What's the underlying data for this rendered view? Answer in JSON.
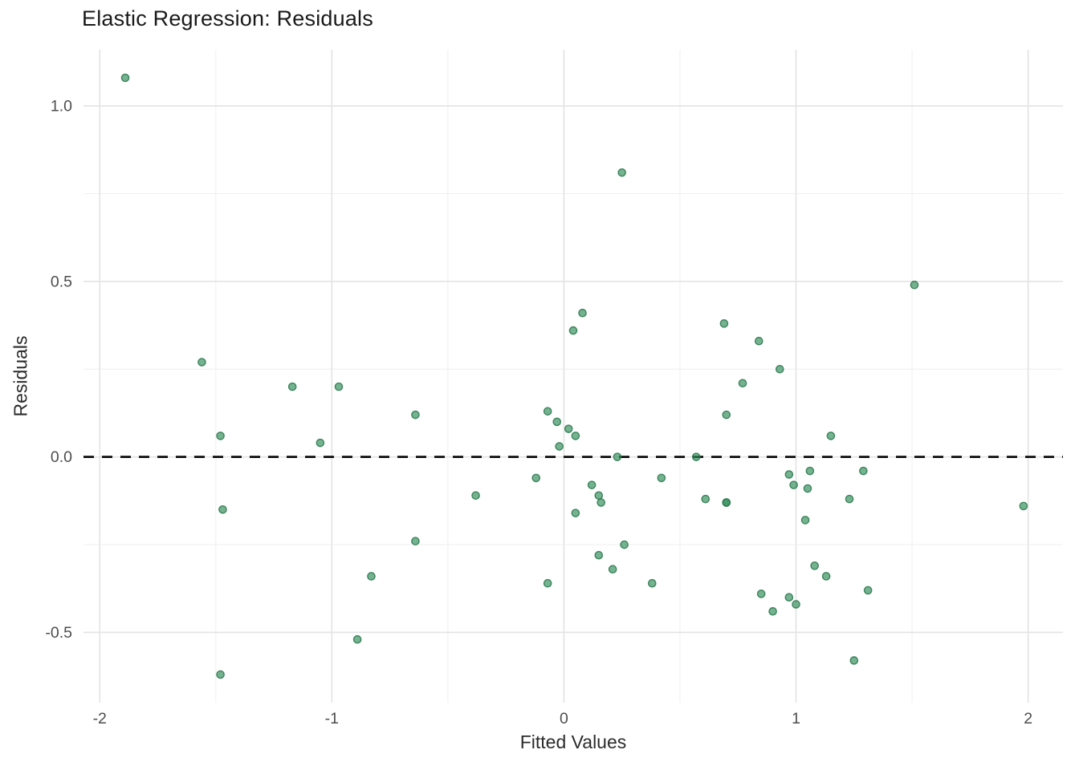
{
  "title": "Elastic Regression: Residuals",
  "chart_data": {
    "type": "scatter",
    "title": "Elastic Regression: Residuals",
    "xlabel": "Fitted Values",
    "ylabel": "Residuals",
    "xlim": [
      -2.07,
      2.15
    ],
    "ylim": [
      -0.7,
      1.16
    ],
    "grid": true,
    "legend": "none",
    "x_ticks": [
      {
        "value": -2,
        "label": "-2"
      },
      {
        "value": -1,
        "label": "-1"
      },
      {
        "value": 0,
        "label": "0"
      },
      {
        "value": 1,
        "label": "1"
      },
      {
        "value": 2,
        "label": "2"
      }
    ],
    "x_minor_ticks": [
      -1.5,
      -0.5,
      0.5,
      1.5
    ],
    "y_ticks": [
      {
        "value": -0.5,
        "label": "-0.5"
      },
      {
        "value": 0,
        "label": "0.0"
      },
      {
        "value": 0.5,
        "label": "0.5"
      },
      {
        "value": 1,
        "label": "1.0"
      }
    ],
    "y_minor_ticks": [
      -0.25,
      0.25,
      0.75
    ],
    "reference_line": {
      "y": 0,
      "style": "dashed",
      "color": "#0a0a0a"
    },
    "series": [
      {
        "name": "residuals",
        "marker": "circle",
        "color": "#2E8B57",
        "alpha": 0.66,
        "points": [
          [
            -1.89,
            1.08
          ],
          [
            0.25,
            0.81
          ],
          [
            1.51,
            0.49
          ],
          [
            0.08,
            0.41
          ],
          [
            0.04,
            0.36
          ],
          [
            0.69,
            0.38
          ],
          [
            0.84,
            0.33
          ],
          [
            0.93,
            0.25
          ],
          [
            0.77,
            0.21
          ],
          [
            -1.56,
            0.27
          ],
          [
            -1.17,
            0.2
          ],
          [
            -0.97,
            0.2
          ],
          [
            -0.64,
            0.12
          ],
          [
            0.7,
            0.12
          ],
          [
            -1.48,
            0.06
          ],
          [
            -1.05,
            0.04
          ],
          [
            1.15,
            0.06
          ],
          [
            -0.07,
            0.13
          ],
          [
            -0.03,
            0.1
          ],
          [
            0.02,
            0.08
          ],
          [
            0.05,
            0.06
          ],
          [
            -0.02,
            0.03
          ],
          [
            0.23,
            0.0
          ],
          [
            0.57,
            0.0
          ],
          [
            -0.38,
            -0.11
          ],
          [
            -0.12,
            -0.06
          ],
          [
            0.12,
            -0.08
          ],
          [
            0.15,
            -0.11
          ],
          [
            0.16,
            -0.13
          ],
          [
            0.05,
            -0.16
          ],
          [
            0.42,
            -0.06
          ],
          [
            0.61,
            -0.12
          ],
          [
            0.7,
            -0.13
          ],
          [
            0.7,
            -0.13
          ],
          [
            0.97,
            -0.05
          ],
          [
            1.06,
            -0.04
          ],
          [
            1.29,
            -0.04
          ],
          [
            0.99,
            -0.08
          ],
          [
            1.05,
            -0.09
          ],
          [
            1.23,
            -0.12
          ],
          [
            1.04,
            -0.18
          ],
          [
            1.98,
            -0.14
          ],
          [
            -1.47,
            -0.15
          ],
          [
            -0.64,
            -0.24
          ],
          [
            0.26,
            -0.25
          ],
          [
            0.15,
            -0.28
          ],
          [
            0.21,
            -0.32
          ],
          [
            -0.07,
            -0.36
          ],
          [
            0.38,
            -0.36
          ],
          [
            -0.83,
            -0.34
          ],
          [
            1.08,
            -0.31
          ],
          [
            1.13,
            -0.34
          ],
          [
            1.31,
            -0.38
          ],
          [
            0.85,
            -0.39
          ],
          [
            0.97,
            -0.4
          ],
          [
            1.0,
            -0.42
          ],
          [
            0.9,
            -0.44
          ],
          [
            -0.89,
            -0.52
          ],
          [
            1.25,
            -0.58
          ],
          [
            -1.48,
            -0.62
          ]
        ]
      }
    ],
    "style": {
      "background": "#ffffff",
      "grid_major_color": "#e3e3e3",
      "grid_minor_color": "#f1f1f1",
      "tick_label_color": "#4d4d4d",
      "point_fill": "#2E8B57",
      "point_stroke": "#27764a"
    }
  }
}
